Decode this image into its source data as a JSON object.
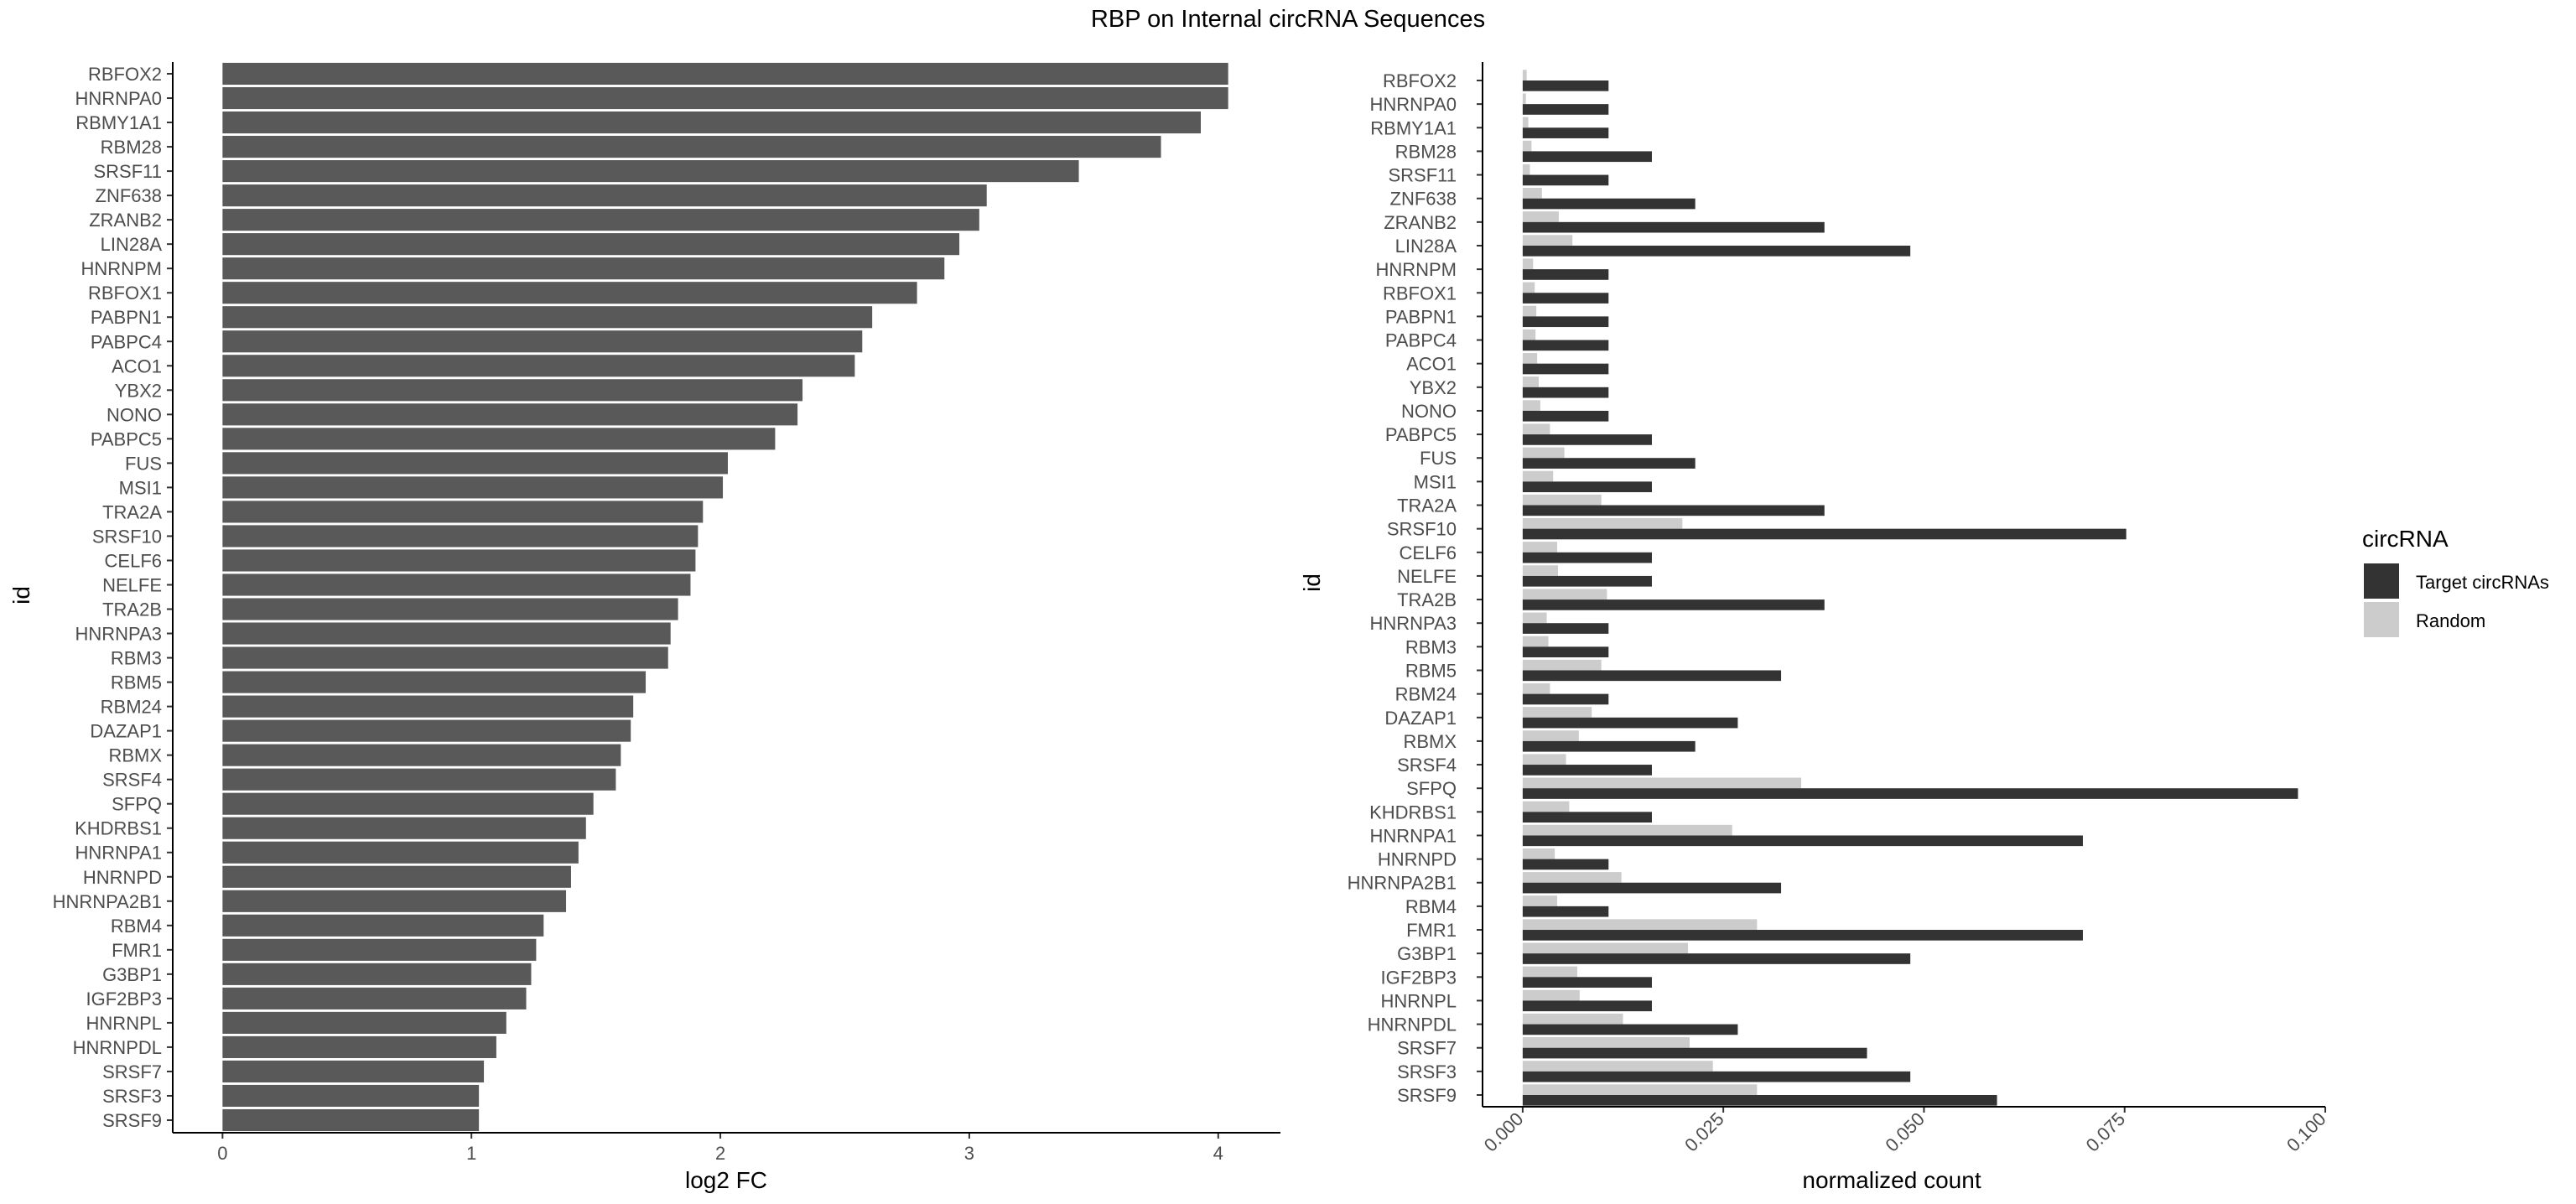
{
  "title": "RBP on Internal circRNA Sequences",
  "chart_data": [
    {
      "type": "bar",
      "orientation": "horizontal",
      "xlabel": "log2 FC",
      "ylabel": "id",
      "xlim": [
        -0.2,
        4.25
      ],
      "xticks": [
        0,
        1,
        2,
        3,
        4
      ],
      "grid": false,
      "bar_color": "#595959",
      "categories": [
        "RBFOX2",
        "HNRNPA0",
        "RBMY1A1",
        "RBM28",
        "SRSF11",
        "ZNF638",
        "ZRANB2",
        "LIN28A",
        "HNRNPM",
        "RBFOX1",
        "PABPN1",
        "PABPC4",
        "ACO1",
        "YBX2",
        "NONO",
        "PABPC5",
        "FUS",
        "MSI1",
        "TRA2A",
        "SRSF10",
        "CELF6",
        "NELFE",
        "TRA2B",
        "HNRNPA3",
        "RBM3",
        "RBM5",
        "RBM24",
        "DAZAP1",
        "RBMX",
        "SRSF4",
        "SFPQ",
        "KHDRBS1",
        "HNRNPA1",
        "HNRNPD",
        "HNRNPA2B1",
        "RBM4",
        "FMR1",
        "G3BP1",
        "IGF2BP3",
        "HNRNPL",
        "HNRNPDL",
        "SRSF7",
        "SRSF3",
        "SRSF9"
      ],
      "values": [
        4.04,
        4.04,
        3.93,
        3.77,
        3.44,
        3.07,
        3.04,
        2.96,
        2.9,
        2.79,
        2.61,
        2.57,
        2.54,
        2.33,
        2.31,
        2.22,
        2.03,
        2.01,
        1.93,
        1.91,
        1.9,
        1.88,
        1.83,
        1.8,
        1.79,
        1.7,
        1.65,
        1.64,
        1.6,
        1.58,
        1.49,
        1.46,
        1.43,
        1.4,
        1.38,
        1.29,
        1.26,
        1.24,
        1.22,
        1.14,
        1.1,
        1.05,
        1.03,
        1.03
      ]
    },
    {
      "type": "bar",
      "orientation": "horizontal",
      "xlabel": "normalized count",
      "ylabel": "id",
      "xlim": [
        -0.005,
        0.1
      ],
      "xticks": [
        "0.000",
        "0.025",
        "0.050",
        "0.075",
        "0.100"
      ],
      "grid": false,
      "legend": {
        "title": "circRNA",
        "placement": "right"
      },
      "categories": [
        "RBFOX2",
        "HNRNPA0",
        "RBMY1A1",
        "RBM28",
        "SRSF11",
        "ZNF638",
        "ZRANB2",
        "LIN28A",
        "HNRNPM",
        "RBFOX1",
        "PABPN1",
        "PABPC4",
        "ACO1",
        "YBX2",
        "NONO",
        "PABPC5",
        "FUS",
        "MSI1",
        "TRA2A",
        "SRSF10",
        "CELF6",
        "NELFE",
        "TRA2B",
        "HNRNPA3",
        "RBM3",
        "RBM5",
        "RBM24",
        "DAZAP1",
        "RBMX",
        "SRSF4",
        "SFPQ",
        "KHDRBS1",
        "HNRNPA1",
        "HNRNPD",
        "HNRNPA2B1",
        "RBM4",
        "FMR1",
        "G3BP1",
        "IGF2BP3",
        "HNRNPL",
        "HNRNPDL",
        "SRSF7",
        "SRSF3",
        "SRSF9"
      ],
      "series": [
        {
          "name": "Target circRNAs",
          "color": "#333333",
          "values": [
            0.0107,
            0.0107,
            0.0107,
            0.0161,
            0.0107,
            0.0215,
            0.0376,
            0.0483,
            0.0107,
            0.0107,
            0.0107,
            0.0107,
            0.0107,
            0.0107,
            0.0107,
            0.0161,
            0.0215,
            0.0161,
            0.0376,
            0.0752,
            0.0161,
            0.0161,
            0.0376,
            0.0107,
            0.0107,
            0.0322,
            0.0107,
            0.0268,
            0.0215,
            0.0161,
            0.0966,
            0.0161,
            0.0698,
            0.0107,
            0.0322,
            0.0107,
            0.0698,
            0.0483,
            0.0161,
            0.0161,
            0.0268,
            0.0429,
            0.0483,
            0.0591
          ]
        },
        {
          "name": "Random",
          "color": "#cccccc",
          "values": [
            0.0005,
            0.0004,
            0.0007,
            0.0011,
            0.0009,
            0.0024,
            0.0045,
            0.0062,
            0.0013,
            0.0015,
            0.0017,
            0.0016,
            0.0018,
            0.002,
            0.0022,
            0.0034,
            0.0052,
            0.0038,
            0.0098,
            0.0199,
            0.0043,
            0.0044,
            0.0105,
            0.003,
            0.0032,
            0.0098,
            0.0034,
            0.0086,
            0.007,
            0.0054,
            0.0347,
            0.0058,
            0.0261,
            0.004,
            0.0123,
            0.0043,
            0.0292,
            0.0206,
            0.0068,
            0.0071,
            0.0125,
            0.0208,
            0.0237,
            0.0292
          ]
        }
      ]
    }
  ]
}
